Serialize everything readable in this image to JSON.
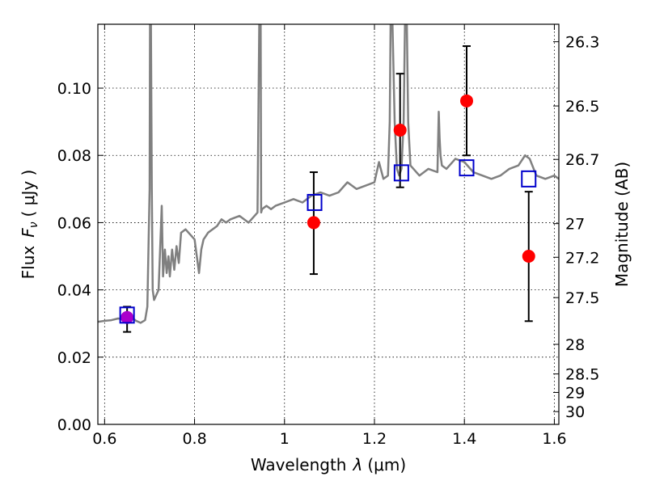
{
  "chart_data": {
    "type": "scatter",
    "xlabel": "Wavelength",
    "xlabel_symbol": "λ",
    "xlabel_unit": "(μm)",
    "ylabel": "Flux",
    "ylabel_symbol": "F",
    "ylabel_subscript": "ν",
    "ylabel_unit": "( μJy )",
    "y2label": "Magnitude (AB)",
    "xlim": [
      0.585,
      1.61
    ],
    "ylim": [
      0.0,
      0.119
    ],
    "grid": true,
    "xticks": [
      0.6,
      0.8,
      1.0,
      1.2,
      1.4,
      1.6
    ],
    "xtick_labels": [
      "0.6",
      "0.8",
      "1",
      "1.2",
      "1.4",
      "1.6"
    ],
    "yticks": [
      0.0,
      0.02,
      0.04,
      0.06,
      0.08,
      0.1
    ],
    "ytick_labels": [
      "0.00",
      "0.02",
      "0.04",
      "0.06",
      "0.08",
      "0.10"
    ],
    "y2ticks": [
      {
        "label": "26.3",
        "flux": 0.1138
      },
      {
        "label": "26.5",
        "flux": 0.0947
      },
      {
        "label": "26.7",
        "flux": 0.0788
      },
      {
        "label": "27",
        "flux": 0.0597
      },
      {
        "label": "27.2",
        "flux": 0.0497
      },
      {
        "label": "27.5",
        "flux": 0.0377
      },
      {
        "label": "28",
        "flux": 0.0238
      },
      {
        "label": "28.5",
        "flux": 0.015
      },
      {
        "label": "29",
        "flux": 0.0095
      },
      {
        "label": "30",
        "flux": 0.0038
      }
    ],
    "model_color": "#808080",
    "model_spectrum": {
      "x": [
        0.585,
        0.6,
        0.615,
        0.63,
        0.645,
        0.66,
        0.67,
        0.68,
        0.69,
        0.695,
        0.7,
        0.701,
        0.703,
        0.705,
        0.707,
        0.71,
        0.72,
        0.727,
        0.73,
        0.734,
        0.738,
        0.742,
        0.745,
        0.75,
        0.755,
        0.76,
        0.765,
        0.77,
        0.78,
        0.8,
        0.81,
        0.815,
        0.82,
        0.825,
        0.83,
        0.84,
        0.85,
        0.86,
        0.87,
        0.88,
        0.9,
        0.92,
        0.94,
        0.944,
        0.945,
        0.946,
        0.947,
        0.948,
        0.95,
        0.96,
        0.97,
        0.98,
        1.0,
        1.02,
        1.04,
        1.06,
        1.08,
        1.1,
        1.12,
        1.14,
        1.16,
        1.18,
        1.2,
        1.21,
        1.22,
        1.23,
        1.234,
        1.236,
        1.24,
        1.245,
        1.25,
        1.255,
        1.26,
        1.265,
        1.268,
        1.27,
        1.272,
        1.275,
        1.28,
        1.3,
        1.32,
        1.34,
        1.343,
        1.345,
        1.347,
        1.35,
        1.36,
        1.38,
        1.4,
        1.42,
        1.44,
        1.46,
        1.48,
        1.5,
        1.52,
        1.535,
        1.545,
        1.56,
        1.58,
        1.6,
        1.61
      ],
      "y": [
        0.0305,
        0.0308,
        0.031,
        0.0315,
        0.0312,
        0.0318,
        0.0308,
        0.0302,
        0.031,
        0.035,
        0.07,
        0.12,
        0.12,
        0.07,
        0.04,
        0.037,
        0.04,
        0.065,
        0.044,
        0.052,
        0.045,
        0.05,
        0.044,
        0.052,
        0.046,
        0.053,
        0.048,
        0.057,
        0.058,
        0.055,
        0.045,
        0.052,
        0.055,
        0.056,
        0.057,
        0.058,
        0.059,
        0.061,
        0.06,
        0.061,
        0.062,
        0.06,
        0.063,
        0.12,
        0.12,
        0.12,
        0.12,
        0.063,
        0.064,
        0.065,
        0.064,
        0.065,
        0.066,
        0.067,
        0.066,
        0.068,
        0.069,
        0.068,
        0.069,
        0.072,
        0.07,
        0.071,
        0.072,
        0.078,
        0.073,
        0.074,
        0.09,
        0.12,
        0.12,
        0.09,
        0.076,
        0.074,
        0.076,
        0.09,
        0.12,
        0.12,
        0.12,
        0.09,
        0.077,
        0.074,
        0.076,
        0.075,
        0.093,
        0.085,
        0.08,
        0.077,
        0.076,
        0.079,
        0.078,
        0.075,
        0.074,
        0.073,
        0.074,
        0.076,
        0.077,
        0.08,
        0.079,
        0.074,
        0.073,
        0.074,
        0.073
      ]
    },
    "series": [
      {
        "kind": "observed",
        "marker": "circle",
        "color": "#ff0000",
        "points": [
          {
            "x": 1.065,
            "y": 0.06,
            "yerr_low": 0.0447,
            "yerr_high": 0.075
          },
          {
            "x": 1.257,
            "y": 0.0875,
            "yerr_low": 0.0705,
            "yerr_high": 0.1043
          },
          {
            "x": 1.405,
            "y": 0.0962,
            "yerr_low": 0.08,
            "yerr_high": 0.1125
          },
          {
            "x": 1.543,
            "y": 0.05,
            "yerr_low": 0.0307,
            "yerr_high": 0.0692
          }
        ]
      },
      {
        "kind": "observed",
        "marker": "circle",
        "color": "#aa00cc",
        "points": [
          {
            "x": 0.65,
            "y": 0.0318,
            "yerr_low": 0.0275,
            "yerr_high": 0.035
          }
        ]
      },
      {
        "kind": "model_photometry",
        "marker": "square",
        "color": "#0000cc",
        "points": [
          {
            "x": 0.65,
            "y": 0.0325
          },
          {
            "x": 1.067,
            "y": 0.066
          },
          {
            "x": 1.26,
            "y": 0.0748
          },
          {
            "x": 1.405,
            "y": 0.0763
          },
          {
            "x": 1.543,
            "y": 0.073
          }
        ]
      }
    ]
  }
}
